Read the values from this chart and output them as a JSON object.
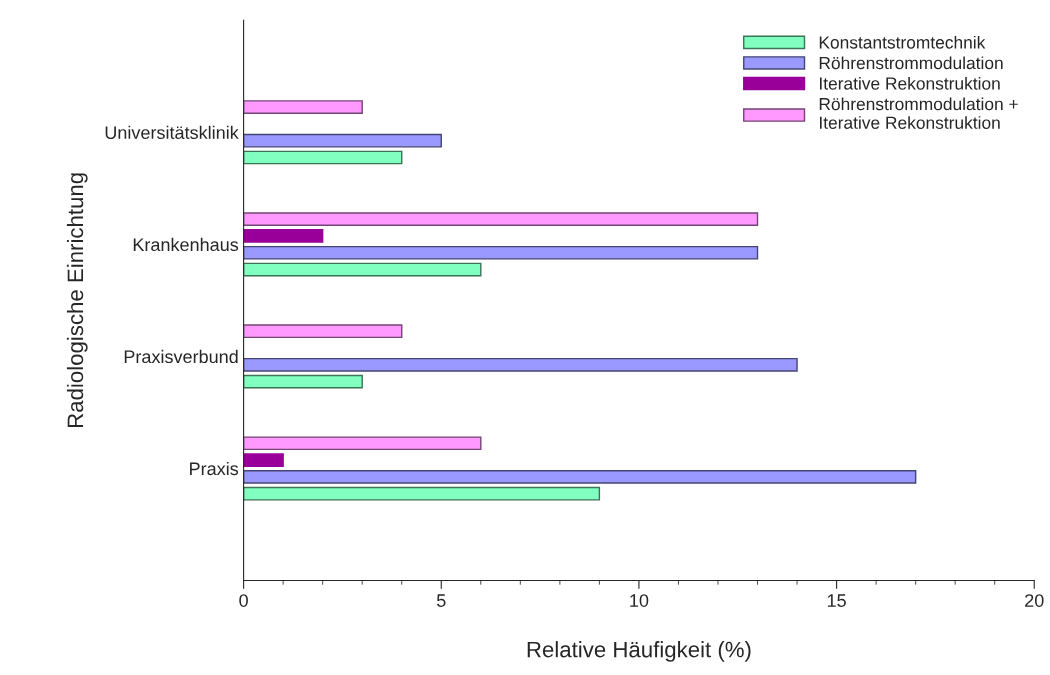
{
  "chart_data": {
    "type": "bar",
    "orientation": "horizontal",
    "xlabel": "Relative Häufigkeit (%)",
    "ylabel": "Radiologische Einrichtung",
    "categories": [
      "Universitätsklinik",
      "Krankenhaus",
      "Praxisverbund",
      "Praxis"
    ],
    "series": [
      {
        "name": "Konstantstromtechnik",
        "color": "#80ffc0",
        "values": [
          4,
          6,
          3,
          9
        ]
      },
      {
        "name": "Röhrenstrommodulation",
        "color": "#9999ff",
        "values": [
          5,
          13,
          14,
          17
        ]
      },
      {
        "name": "Iterative Rekonstruktion",
        "color": "#990099",
        "values": [
          null,
          2,
          null,
          1
        ]
      },
      {
        "name": "Röhrenstrommodulation +\nIterative Rekonstruktion",
        "color": "#ff99ff",
        "values": [
          3,
          13,
          4,
          6
        ]
      }
    ],
    "xlim": [
      0,
      20
    ],
    "xticks": [
      0,
      5,
      10,
      15,
      20
    ],
    "grid": false,
    "legend": "top right"
  }
}
